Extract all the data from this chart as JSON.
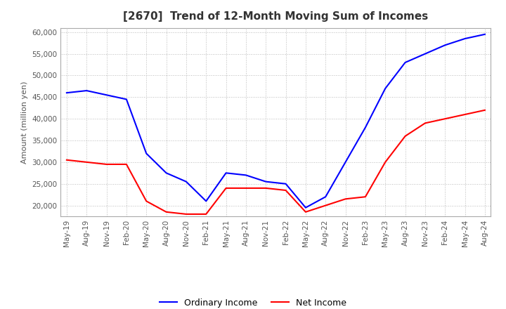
{
  "title": "[2670]  Trend of 12-Month Moving Sum of Incomes",
  "ylabel": "Amount (million yen)",
  "ylim": [
    17500,
    61000
  ],
  "yticks": [
    20000,
    25000,
    30000,
    35000,
    40000,
    45000,
    50000,
    55000,
    60000
  ],
  "line_colors": {
    "ordinary": "#0000FF",
    "net": "#FF0000"
  },
  "legend_labels": [
    "Ordinary Income",
    "Net Income"
  ],
  "x_labels": [
    "May-19",
    "Aug-19",
    "Nov-19",
    "Feb-20",
    "May-20",
    "Aug-20",
    "Nov-20",
    "Feb-21",
    "May-21",
    "Aug-21",
    "Nov-21",
    "Feb-22",
    "May-22",
    "Aug-22",
    "Nov-22",
    "Feb-23",
    "May-23",
    "Aug-23",
    "Nov-23",
    "Feb-24",
    "May-24",
    "Aug-24"
  ],
  "ordinary_income": [
    46000,
    46500,
    45500,
    44500,
    32000,
    27500,
    25500,
    21000,
    27500,
    27000,
    25500,
    25000,
    19500,
    22000,
    30000,
    38000,
    47000,
    53000,
    55000,
    57000,
    58500,
    59500
  ],
  "net_income": [
    30500,
    30000,
    29500,
    29500,
    21000,
    18500,
    18000,
    18000,
    24000,
    24000,
    24000,
    23500,
    18500,
    20000,
    21500,
    22000,
    30000,
    36000,
    39000,
    40000,
    41000,
    42000
  ],
  "background_color": "#ffffff",
  "grid_color": "#bbbbbb",
  "title_fontsize": 11,
  "axis_fontsize": 8,
  "tick_fontsize": 7.5,
  "legend_fontsize": 9
}
